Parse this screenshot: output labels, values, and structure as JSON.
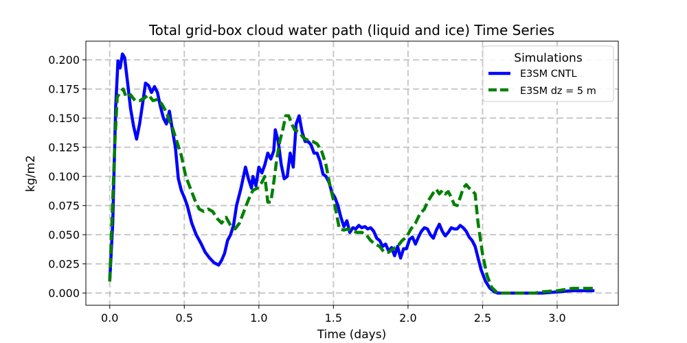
{
  "chart_data": {
    "type": "line",
    "title": "Total grid-box cloud water path (liquid and ice) Time Series",
    "xlabel": "Time (days)",
    "ylabel": "kg/m2",
    "xlim": [
      -0.16,
      3.41
    ],
    "ylim": [
      -0.0105,
      0.216
    ],
    "xticks": [
      0.0,
      0.5,
      1.0,
      1.5,
      2.0,
      2.5,
      3.0
    ],
    "xtick_labels": [
      "0.0",
      "0.5",
      "1.0",
      "1.5",
      "2.0",
      "2.5",
      "3.0"
    ],
    "yticks": [
      0.0,
      0.025,
      0.05,
      0.075,
      0.1,
      0.125,
      0.15,
      0.175,
      0.2
    ],
    "ytick_labels": [
      "0.000",
      "0.025",
      "0.050",
      "0.075",
      "0.100",
      "0.125",
      "0.150",
      "0.175",
      "0.200"
    ],
    "grid": true,
    "legend": {
      "title": "Simulations",
      "position": "top-right"
    },
    "series": [
      {
        "name": "E3SM CNTL",
        "color": "#0000ff",
        "style": "solid",
        "x": [
          0.0,
          0.02,
          0.04,
          0.055,
          0.07,
          0.085,
          0.1,
          0.12,
          0.14,
          0.16,
          0.18,
          0.2,
          0.22,
          0.24,
          0.26,
          0.28,
          0.3,
          0.32,
          0.34,
          0.36,
          0.38,
          0.4,
          0.42,
          0.44,
          0.46,
          0.48,
          0.5,
          0.52,
          0.55,
          0.58,
          0.61,
          0.64,
          0.67,
          0.7,
          0.73,
          0.75,
          0.77,
          0.79,
          0.81,
          0.83,
          0.85,
          0.88,
          0.91,
          0.93,
          0.95,
          0.96,
          0.98,
          0.99,
          1.0,
          1.02,
          1.04,
          1.06,
          1.08,
          1.1,
          1.11,
          1.13,
          1.15,
          1.17,
          1.19,
          1.21,
          1.23,
          1.25,
          1.27,
          1.29,
          1.31,
          1.33,
          1.35,
          1.37,
          1.39,
          1.41,
          1.43,
          1.45,
          1.47,
          1.49,
          1.51,
          1.53,
          1.55,
          1.57,
          1.59,
          1.61,
          1.63,
          1.65,
          1.67,
          1.69,
          1.71,
          1.73,
          1.75,
          1.77,
          1.79,
          1.81,
          1.83,
          1.85,
          1.87,
          1.89,
          1.91,
          1.93,
          1.95,
          1.97,
          1.99,
          2.01,
          2.03,
          2.05,
          2.07,
          2.09,
          2.11,
          2.13,
          2.15,
          2.17,
          2.19,
          2.21,
          2.23,
          2.25,
          2.27,
          2.29,
          2.31,
          2.33,
          2.35,
          2.37,
          2.39,
          2.41,
          2.43,
          2.45,
          2.47,
          2.49,
          2.52,
          2.55,
          2.58,
          2.6,
          2.7,
          2.8,
          2.9,
          3.0,
          3.1,
          3.15,
          3.2,
          3.25
        ],
        "y": [
          0.01,
          0.06,
          0.16,
          0.199,
          0.193,
          0.205,
          0.202,
          0.18,
          0.158,
          0.143,
          0.132,
          0.145,
          0.162,
          0.18,
          0.178,
          0.172,
          0.177,
          0.172,
          0.16,
          0.15,
          0.145,
          0.156,
          0.14,
          0.125,
          0.098,
          0.088,
          0.082,
          0.075,
          0.06,
          0.05,
          0.043,
          0.035,
          0.03,
          0.026,
          0.024,
          0.028,
          0.034,
          0.045,
          0.05,
          0.058,
          0.075,
          0.09,
          0.108,
          0.098,
          0.09,
          0.1,
          0.092,
          0.1,
          0.108,
          0.103,
          0.11,
          0.12,
          0.115,
          0.122,
          0.14,
          0.13,
          0.11,
          0.098,
          0.1,
          0.12,
          0.108,
          0.145,
          0.152,
          0.138,
          0.13,
          0.13,
          0.127,
          0.12,
          0.12,
          0.113,
          0.102,
          0.1,
          0.095,
          0.086,
          0.082,
          0.075,
          0.065,
          0.057,
          0.062,
          0.052,
          0.056,
          0.055,
          0.058,
          0.056,
          0.057,
          0.055,
          0.056,
          0.053,
          0.047,
          0.045,
          0.04,
          0.042,
          0.036,
          0.039,
          0.032,
          0.04,
          0.03,
          0.038,
          0.038,
          0.046,
          0.048,
          0.042,
          0.048,
          0.053,
          0.056,
          0.055,
          0.05,
          0.047,
          0.054,
          0.059,
          0.053,
          0.049,
          0.052,
          0.056,
          0.055,
          0.055,
          0.058,
          0.056,
          0.053,
          0.048,
          0.045,
          0.04,
          0.03,
          0.02,
          0.01,
          0.004,
          0.001,
          0.0,
          0.0,
          0.0,
          0.0,
          0.001,
          0.002,
          0.002,
          0.002,
          0.002
        ]
      },
      {
        "name": "E3SM dz = 5 m",
        "color": "#008000",
        "style": "dashed",
        "x": [
          0.0,
          0.02,
          0.035,
          0.05,
          0.07,
          0.09,
          0.11,
          0.14,
          0.17,
          0.2,
          0.23,
          0.26,
          0.29,
          0.32,
          0.35,
          0.38,
          0.4,
          0.42,
          0.45,
          0.48,
          0.51,
          0.54,
          0.57,
          0.6,
          0.63,
          0.66,
          0.69,
          0.72,
          0.75,
          0.78,
          0.81,
          0.84,
          0.87,
          0.9,
          0.93,
          0.96,
          0.99,
          1.02,
          1.04,
          1.06,
          1.08,
          1.1,
          1.12,
          1.14,
          1.16,
          1.18,
          1.2,
          1.22,
          1.24,
          1.27,
          1.3,
          1.33,
          1.36,
          1.39,
          1.42,
          1.45,
          1.48,
          1.51,
          1.54,
          1.57,
          1.6,
          1.63,
          1.66,
          1.69,
          1.72,
          1.75,
          1.78,
          1.81,
          1.84,
          1.87,
          1.9,
          1.93,
          1.96,
          1.99,
          2.02,
          2.05,
          2.08,
          2.11,
          2.13,
          2.15,
          2.17,
          2.19,
          2.21,
          2.23,
          2.25,
          2.27,
          2.29,
          2.31,
          2.33,
          2.35,
          2.37,
          2.39,
          2.41,
          2.43,
          2.45,
          2.47,
          2.5,
          2.53,
          2.56,
          2.6,
          2.7,
          2.8,
          2.85,
          2.9,
          3.0,
          3.05,
          3.1,
          3.15,
          3.2,
          3.25
        ],
        "y": [
          0.01,
          0.08,
          0.13,
          0.168,
          0.172,
          0.175,
          0.168,
          0.17,
          0.165,
          0.165,
          0.167,
          0.17,
          0.165,
          0.166,
          0.162,
          0.155,
          0.148,
          0.142,
          0.13,
          0.118,
          0.1,
          0.09,
          0.08,
          0.072,
          0.07,
          0.072,
          0.07,
          0.064,
          0.06,
          0.065,
          0.058,
          0.055,
          0.06,
          0.07,
          0.08,
          0.088,
          0.09,
          0.095,
          0.1,
          0.078,
          0.078,
          0.095,
          0.115,
          0.13,
          0.14,
          0.152,
          0.152,
          0.145,
          0.14,
          0.138,
          0.133,
          0.131,
          0.13,
          0.128,
          0.122,
          0.11,
          0.09,
          0.075,
          0.055,
          0.054,
          0.055,
          0.053,
          0.052,
          0.052,
          0.05,
          0.045,
          0.042,
          0.04,
          0.035,
          0.035,
          0.038,
          0.04,
          0.045,
          0.048,
          0.055,
          0.06,
          0.068,
          0.072,
          0.078,
          0.082,
          0.086,
          0.089,
          0.085,
          0.088,
          0.085,
          0.087,
          0.082,
          0.076,
          0.075,
          0.082,
          0.09,
          0.093,
          0.09,
          0.088,
          0.085,
          0.06,
          0.033,
          0.015,
          0.005,
          0.0,
          0.0,
          0.0,
          0.0,
          0.001,
          0.002,
          0.003,
          0.004,
          0.004,
          0.004,
          0.004
        ]
      }
    ]
  }
}
